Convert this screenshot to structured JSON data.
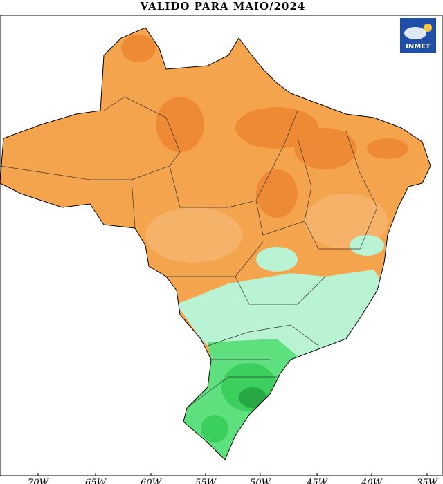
{
  "header": {
    "title": "VALIDO PARA MAIO/2024"
  },
  "logo": {
    "label": "INMET"
  },
  "longitude_labels": [
    "70W",
    "65W",
    "60W",
    "55W",
    "50W",
    "45W",
    "40W",
    "35W"
  ]
}
